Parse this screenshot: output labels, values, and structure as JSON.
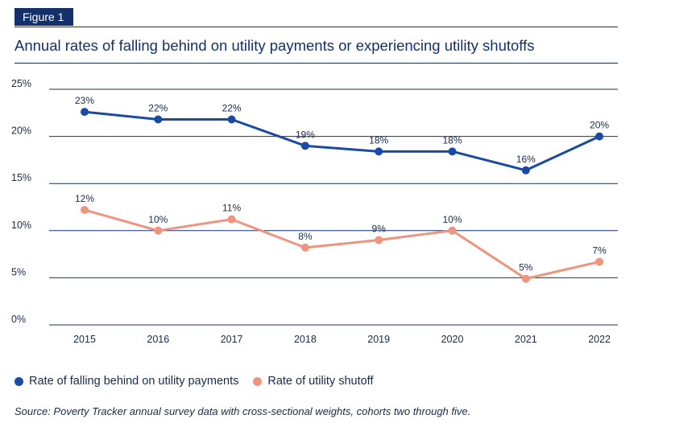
{
  "figure_label": "Figure 1",
  "source": "Source: Poverty Tracker annual survey data with cross-sectional weights, cohorts two through five.",
  "chart_data": {
    "type": "line",
    "title": "Annual rates of falling behind on utility payments or experiencing utility shutoffs",
    "x": [
      "2015",
      "2016",
      "2017",
      "2018",
      "2019",
      "2020",
      "2021",
      "2022"
    ],
    "ylim": [
      0,
      25
    ],
    "yticks": [
      "0%",
      "5%",
      "10%",
      "15%",
      "20%",
      "25%"
    ],
    "grid": true,
    "legend_position": "bottom-left",
    "series": [
      {
        "name": "Rate of falling behind on utility payments",
        "color": "#1a4aa3",
        "values": [
          22.6,
          21.8,
          21.8,
          19.0,
          18.4,
          18.4,
          16.4,
          20.0
        ],
        "labels": [
          "23%",
          "22%",
          "22%",
          "19%",
          "18%",
          "18%",
          "16%",
          "20%"
        ]
      },
      {
        "name": "Rate of utility shutoff",
        "color": "#ee9480",
        "values": [
          12.2,
          10.0,
          11.2,
          8.2,
          9.0,
          10.0,
          4.9,
          6.7
        ],
        "labels": [
          "12%",
          "10%",
          "11%",
          "8%",
          "9%",
          "10%",
          "5%",
          "7%"
        ]
      }
    ]
  }
}
